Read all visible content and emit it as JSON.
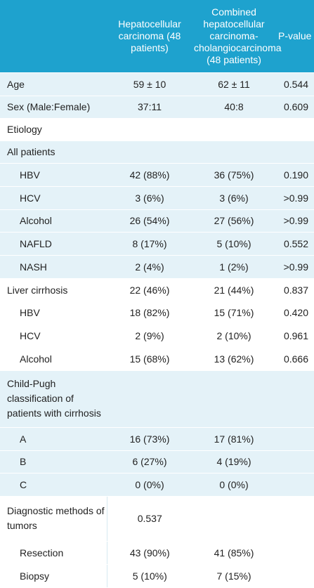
{
  "header": {
    "col1": "Hepatocellular carcinoma (48 patients)",
    "col2": "Combined hepatocellular carcinoma-cholangiocarcinoma (48 patients)",
    "col3": "P-value"
  },
  "rows": [
    {
      "label": "Age",
      "hcc": "59 ± 10",
      "chc": "62 ± 11",
      "p": "0.544"
    },
    {
      "label": "Sex (Male:Female)",
      "hcc": "37:11",
      "chc": "40:8",
      "p": "0.609"
    },
    {
      "label": "Etiology"
    },
    {
      "label": "All patients"
    },
    {
      "label": "HBV",
      "hcc": "42 (88%)",
      "chc": "36 (75%)",
      "p": "0.190"
    },
    {
      "label": "HCV",
      "hcc": "3 (6%)",
      "chc": "3 (6%)",
      "p": ">0.99"
    },
    {
      "label": "Alcohol",
      "hcc": "26 (54%)",
      "chc": "27 (56%)",
      "p": ">0.99"
    },
    {
      "label": "NAFLD",
      "hcc": "8 (17%)",
      "chc": "5 (10%)",
      "p": "0.552"
    },
    {
      "label": "NASH",
      "hcc": "2 (4%)",
      "chc": "1 (2%)",
      "p": ">0.99"
    },
    {
      "label": "Liver cirrhosis",
      "hcc": "22 (46%)",
      "chc": "21 (44%)",
      "p": "0.837"
    },
    {
      "label": "HBV",
      "hcc": "18 (82%)",
      "chc": "15 (71%)",
      "p": "0.420"
    },
    {
      "label": "HCV",
      "hcc": "2 (9%)",
      "chc": "2 (10%)",
      "p": "0.961"
    },
    {
      "label": "Alcohol",
      "hcc": "15 (68%)",
      "chc": "13 (62%)",
      "p": "0.666"
    },
    {
      "label": "Child-Pugh classification of patients with cirrhosis"
    },
    {
      "label": "A",
      "hcc": "16 (73%)",
      "chc": "17 (81%)"
    },
    {
      "label": "B",
      "hcc": "6 (27%)",
      "chc": "4 (19%)"
    },
    {
      "label": "C",
      "hcc": "0 (0%)",
      "chc": "0 (0%)"
    },
    {
      "label": "Diagnostic methods of tumors",
      "hcc": "0.537"
    },
    {
      "label": "Resection",
      "hcc": "43 (90%)",
      "chc": "41 (85%)"
    },
    {
      "label": "Biopsy",
      "hcc": "5 (10%)",
      "chc": "7 (15%)"
    }
  ]
}
